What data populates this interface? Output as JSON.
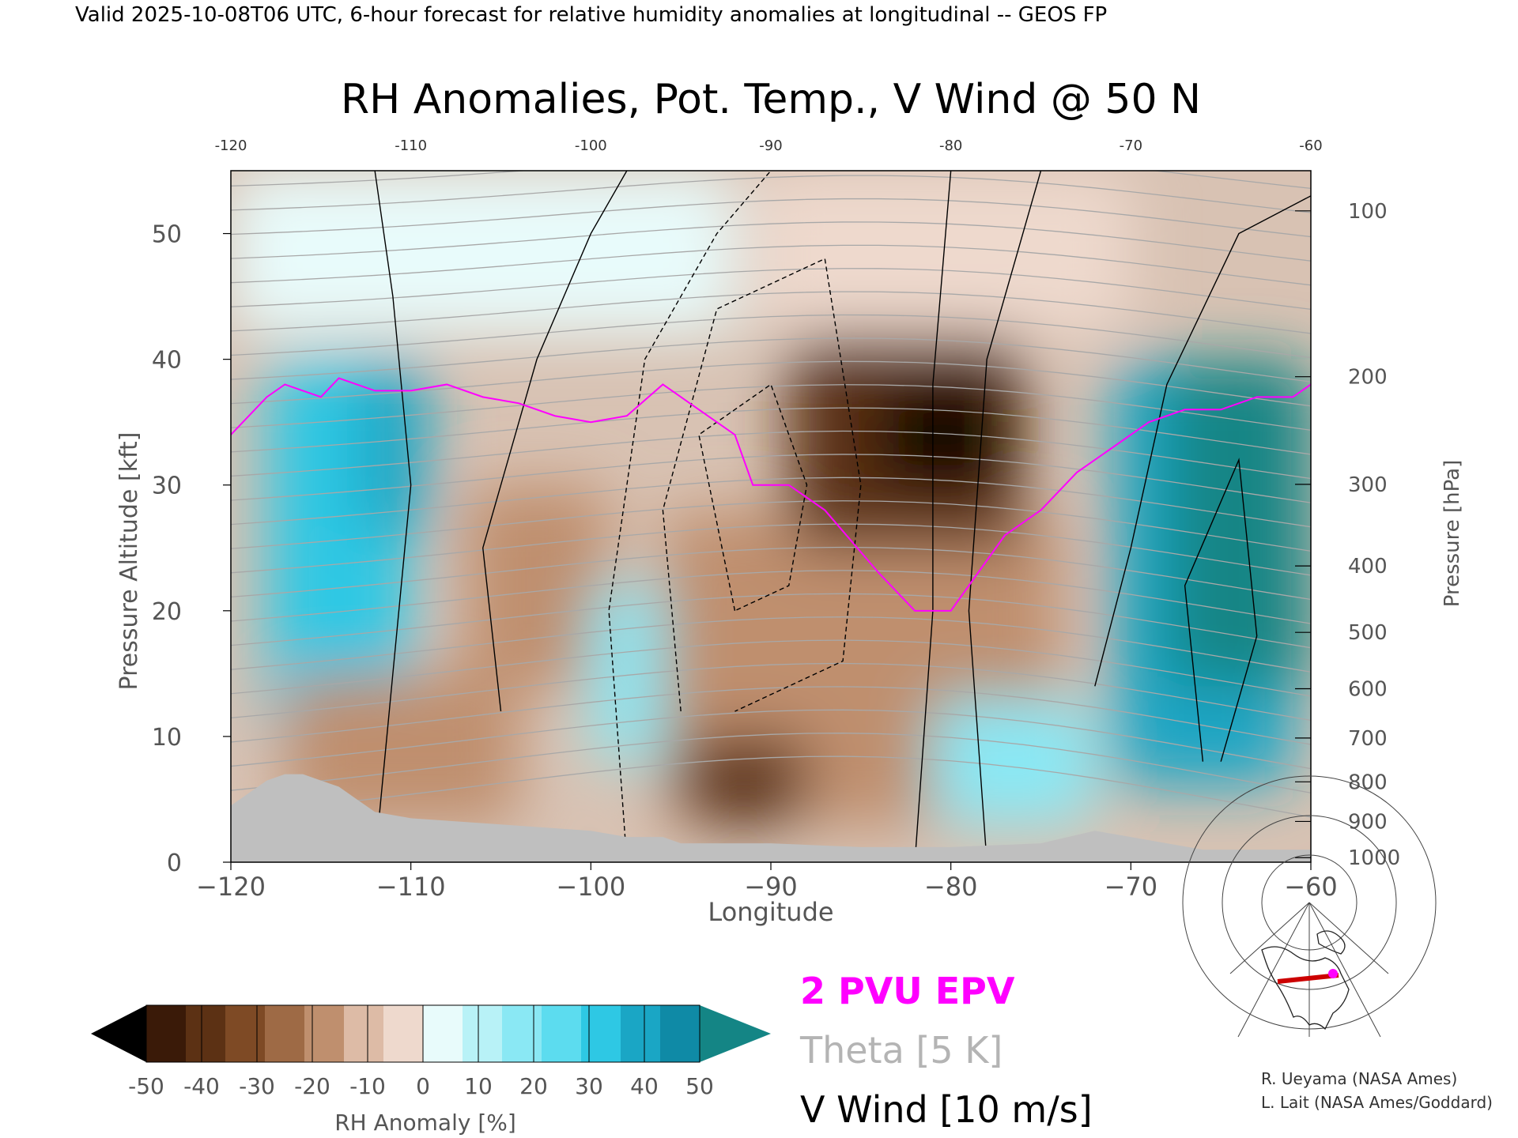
{
  "header": {
    "valid_line": "Valid 2025-10-08T06 UTC, 6-hour forecast for relative humidity anomalies at longitudinal -- GEOS FP",
    "title": "RH Anomalies, Pot. Temp., V Wind @ 50 N"
  },
  "legend": {
    "epv": "2 PVU EPV",
    "theta": "Theta [5 K]",
    "vwind": "V Wind [10 m/s]"
  },
  "colorbar": {
    "label": "RH Anomaly [%]",
    "ticks": [
      "-50",
      "-40",
      "-30",
      "-20",
      "-10",
      "0",
      "10",
      "20",
      "30",
      "40",
      "50"
    ],
    "colors": [
      "#000000",
      "#3a1a08",
      "#5c3114",
      "#7e4a25",
      "#9e6a45",
      "#bf8f6e",
      "#ddbba6",
      "#eed9cd",
      "#e8fbfb",
      "#b8f2f7",
      "#8ae8f4",
      "#5cdcef",
      "#2ec8e4",
      "#1aa6c5",
      "#0f8aa6",
      "#148585"
    ],
    "end_low": "#000000",
    "end_high": "#148585"
  },
  "credits": {
    "line1": "R. Ueyama (NASA Ames)",
    "line2": "L. Lait (NASA Ames/Goddard)"
  },
  "colors": {
    "epv": "#ff00ff",
    "theta": "#a8a8a8",
    "vwind": "#000000",
    "topography": "#bfbfbf",
    "locator_track": "#cc0000",
    "locator_marker": "#ff00ff"
  },
  "chart_data": {
    "type": "heatmap",
    "title": "RH Anomalies, Pot. Temp., V Wind @ 50 N",
    "xlabel": "Longitude",
    "ylabel": "Pressure Altitude [kft]",
    "y2label": "Pressure [hPa]",
    "xlim": [
      -120,
      -60
    ],
    "ylim": [
      0,
      55
    ],
    "x_ticks": [
      -120,
      -110,
      -100,
      -90,
      -80,
      -70,
      -60
    ],
    "x_tick_labels": [
      "−120",
      "−110",
      "−100",
      "−90",
      "−80",
      "−70",
      "−60"
    ],
    "x_top_tick_labels": [
      "-120",
      "-110",
      "-100",
      "-90",
      "-80",
      "-70",
      "-60"
    ],
    "y_ticks": [
      0,
      10,
      20,
      30,
      40,
      50
    ],
    "pressure_ticks": [
      {
        "hpa": 100,
        "label": "100"
      },
      {
        "hpa": 200,
        "label": "200"
      },
      {
        "hpa": 300,
        "label": "300"
      },
      {
        "hpa": 400,
        "label": "400"
      },
      {
        "hpa": 500,
        "label": "500"
      },
      {
        "hpa": 600,
        "label": "600"
      },
      {
        "hpa": 700,
        "label": "700"
      },
      {
        "hpa": 800,
        "label": "800"
      },
      {
        "hpa": 900,
        "label": "900"
      },
      {
        "hpa": 1000,
        "label": "1000"
      }
    ],
    "rh_anomaly_regions": [
      {
        "lon": [
          -118,
          -110
        ],
        "kft": [
          10,
          40
        ],
        "value": 30
      },
      {
        "lon": [
          -113,
          -109
        ],
        "kft": [
          26,
          40
        ],
        "value": 40
      },
      {
        "lon": [
          -107,
          -99
        ],
        "kft": [
          14,
          30
        ],
        "value": -20
      },
      {
        "lon": [
          -117,
          -104
        ],
        "kft": [
          3,
          15
        ],
        "value": -20
      },
      {
        "lon": [
          -100,
          -92
        ],
        "kft": [
          8,
          22
        ],
        "value": 20
      },
      {
        "lon": [
          -96,
          -74
        ],
        "kft": [
          3,
          28
        ],
        "value": -20
      },
      {
        "lon": [
          -89,
          -76
        ],
        "kft": [
          25,
          42
        ],
        "value": -40
      },
      {
        "lon": [
          -84,
          -77
        ],
        "kft": [
          30,
          38
        ],
        "value": -50
      },
      {
        "lon": [
          -95,
          -88
        ],
        "kft": [
          3,
          10
        ],
        "value": -40
      },
      {
        "lon": [
          -81,
          -72
        ],
        "kft": [
          3,
          13
        ],
        "value": 20
      },
      {
        "lon": [
          -71,
          -61
        ],
        "kft": [
          6,
          40
        ],
        "value": 40
      },
      {
        "lon": [
          -68,
          -60
        ],
        "kft": [
          14,
          40
        ],
        "value": 50
      },
      {
        "lon": [
          -91,
          -70
        ],
        "kft": [
          42,
          55
        ],
        "value": -5
      },
      {
        "lon": [
          -120,
          -92
        ],
        "kft": [
          42,
          55
        ],
        "value": 5
      }
    ],
    "epv_2pvu": {
      "lon": [
        -120,
        -118,
        -117,
        -115,
        -114,
        -112,
        -110,
        -108,
        -106,
        -104,
        -102,
        -100,
        -98,
        -96,
        -95,
        -93,
        -92,
        -91,
        -89,
        -87,
        -84,
        -82,
        -80,
        -79,
        -77,
        -75,
        -73,
        -71,
        -69,
        -67,
        -65,
        -63,
        -61,
        -60
      ],
      "kft": [
        34,
        37,
        38,
        37,
        38.5,
        37.5,
        37.5,
        38,
        37,
        36.5,
        35.5,
        35,
        35.5,
        38,
        37,
        35,
        34,
        30,
        30,
        28,
        23,
        20,
        20,
        22,
        26,
        28,
        31,
        33,
        35,
        36,
        36,
        37,
        37,
        38
      ]
    },
    "theta_levels_K": [
      290,
      295,
      300,
      305,
      310,
      315,
      320,
      325,
      330,
      335,
      340,
      345,
      350,
      355,
      360,
      365,
      370,
      375,
      380,
      385,
      390,
      395,
      400,
      405,
      410,
      415,
      420
    ],
    "v_wind_contours_ms": [
      -50,
      -30,
      -10,
      0,
      10,
      30,
      50
    ],
    "v_wind_notes": "Dashed contours mark negative (northerly) V wind near -95 to -82 longitude; solid contours mark positive wind",
    "topography_kft": {
      "lon": [
        -120,
        -119,
        -118,
        -117,
        -116,
        -115,
        -114,
        -113,
        -112,
        -110,
        -105,
        -100,
        -98,
        -96,
        -95,
        -90,
        -85,
        -80,
        -75,
        -72,
        -70,
        -68,
        -66,
        -64,
        -62,
        -60
      ],
      "height": [
        4.5,
        5.5,
        6.5,
        7,
        7,
        6.5,
        6,
        5,
        4,
        3.5,
        3,
        2.5,
        2,
        2,
        1.5,
        1.5,
        1.2,
        1.2,
        1.5,
        2.5,
        2,
        1.5,
        1,
        1,
        1,
        1
      ]
    }
  }
}
